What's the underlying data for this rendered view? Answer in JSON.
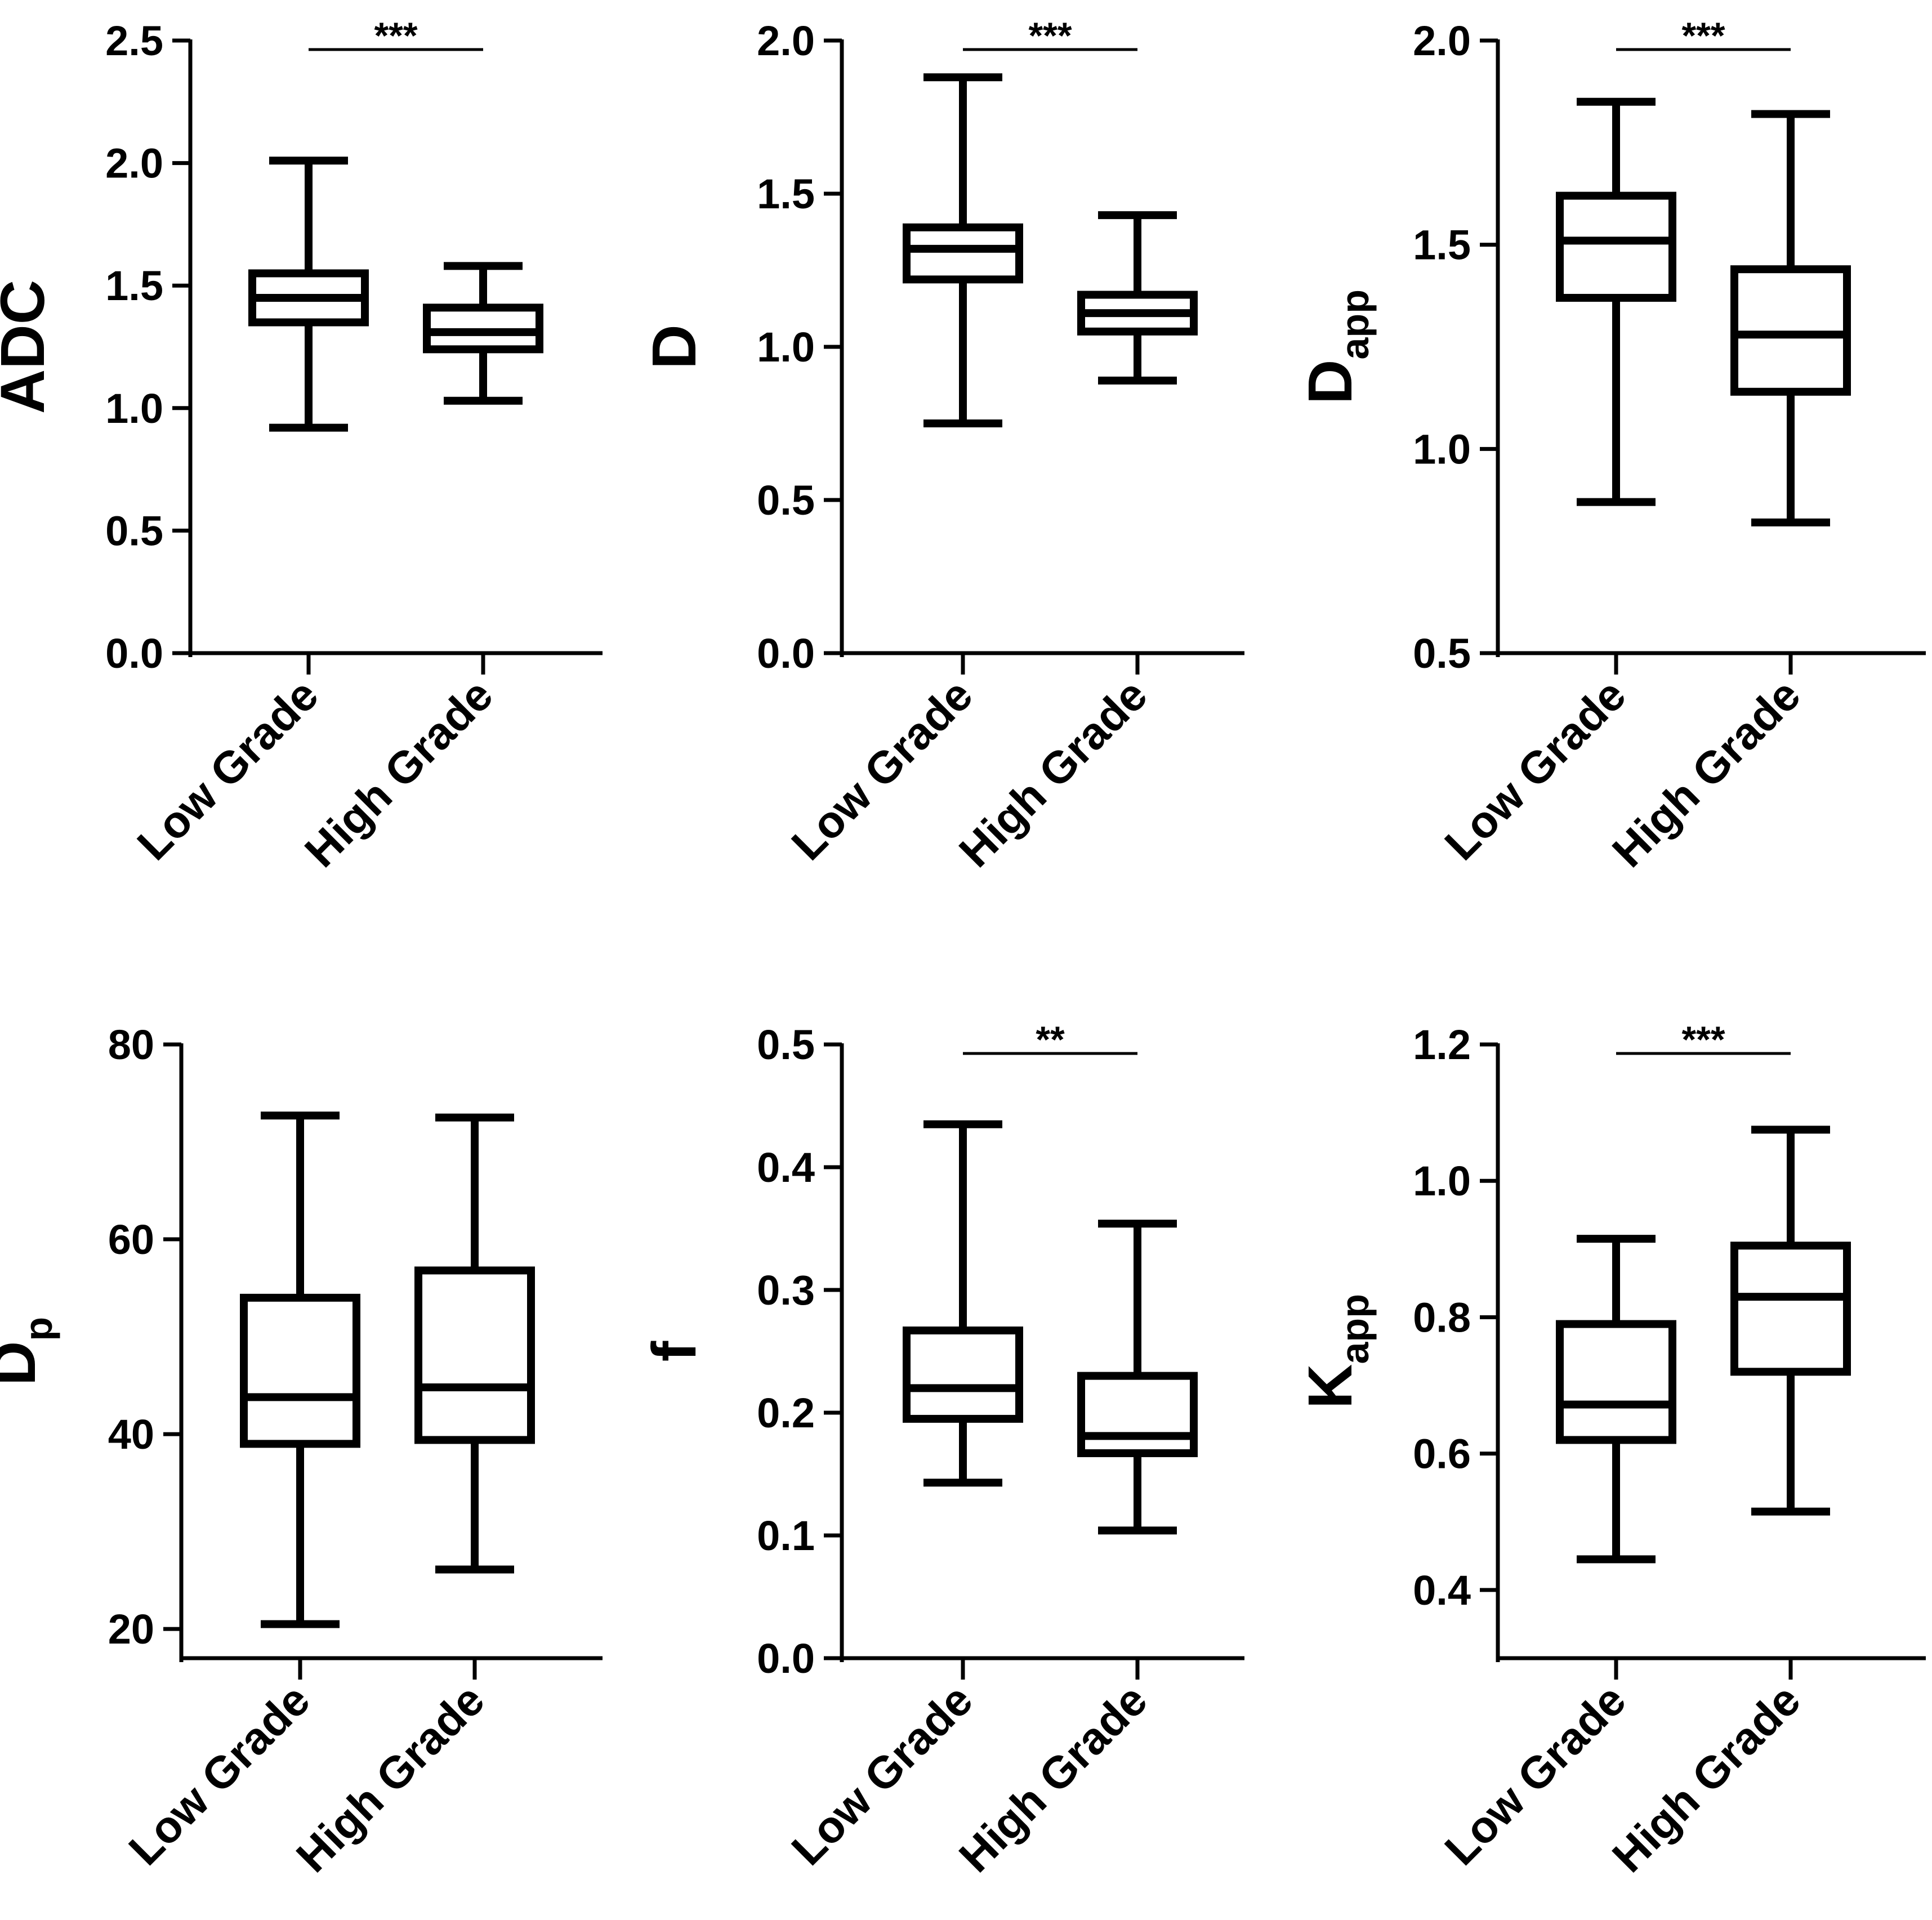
{
  "chart_data": [
    {
      "type": "box",
      "ylabel": "ADC",
      "ylabel_sub": "",
      "ylim": [
        0.0,
        2.5
      ],
      "yticks": [
        "0.0",
        "0.5",
        "1.0",
        "1.5",
        "2.0",
        "2.5"
      ],
      "tick_values": [
        0.0,
        0.5,
        1.0,
        1.5,
        2.0,
        2.5
      ],
      "categories": [
        "Low Grade",
        "High Grade"
      ],
      "boxes": [
        {
          "whisker_low": 0.92,
          "q1": 1.35,
          "median": 1.45,
          "q3": 1.55,
          "whisker_high": 2.01
        },
        {
          "whisker_low": 1.03,
          "q1": 1.24,
          "median": 1.31,
          "q3": 1.41,
          "whisker_high": 1.58
        }
      ],
      "significance": "***"
    },
    {
      "type": "box",
      "ylabel": "D",
      "ylabel_sub": "",
      "ylim": [
        0.0,
        2.0
      ],
      "yticks": [
        "0.0",
        "0.5",
        "1.0",
        "1.5",
        "2.0"
      ],
      "tick_values": [
        0.0,
        0.5,
        1.0,
        1.5,
        2.0
      ],
      "categories": [
        "Low Grade",
        "High Grade"
      ],
      "boxes": [
        {
          "whisker_low": 0.75,
          "q1": 1.22,
          "median": 1.32,
          "q3": 1.39,
          "whisker_high": 1.88
        },
        {
          "whisker_low": 0.89,
          "q1": 1.05,
          "median": 1.11,
          "q3": 1.17,
          "whisker_high": 1.43
        }
      ],
      "significance": "***"
    },
    {
      "type": "box",
      "ylabel": "D",
      "ylabel_sub": "app",
      "ylim": [
        0.5,
        2.0
      ],
      "yticks": [
        "0.5",
        "1.0",
        "1.5",
        "2.0"
      ],
      "tick_values": [
        0.5,
        1.0,
        1.5,
        2.0
      ],
      "categories": [
        "Low Grade",
        "High Grade"
      ],
      "boxes": [
        {
          "whisker_low": 0.87,
          "q1": 1.37,
          "median": 1.51,
          "q3": 1.62,
          "whisker_high": 1.85
        },
        {
          "whisker_low": 0.82,
          "q1": 1.14,
          "median": 1.28,
          "q3": 1.44,
          "whisker_high": 1.82
        }
      ],
      "significance": "***"
    },
    {
      "type": "box",
      "ylabel": "D",
      "ylabel_sub": "p",
      "ylim": [
        17,
        80
      ],
      "yticks": [
        "20",
        "40",
        "60",
        "80"
      ],
      "tick_values": [
        20,
        40,
        60,
        80
      ],
      "categories": [
        "Low Grade",
        "High Grade"
      ],
      "boxes": [
        {
          "whisker_low": 20.5,
          "q1": 39,
          "median": 43.8,
          "q3": 54,
          "whisker_high": 72.7
        },
        {
          "whisker_low": 26.1,
          "q1": 39.4,
          "median": 44.8,
          "q3": 56.8,
          "whisker_high": 72.5
        }
      ],
      "significance": ""
    },
    {
      "type": "box",
      "ylabel": "f",
      "ylabel_sub": "",
      "ylim": [
        0.0,
        0.5
      ],
      "yticks": [
        "0.0",
        "0.1",
        "0.2",
        "0.3",
        "0.4",
        "0.5"
      ],
      "tick_values": [
        0.0,
        0.1,
        0.2,
        0.3,
        0.4,
        0.5
      ],
      "categories": [
        "Low Grade",
        "High Grade"
      ],
      "boxes": [
        {
          "whisker_low": 0.143,
          "q1": 0.195,
          "median": 0.22,
          "q3": 0.267,
          "whisker_high": 0.435
        },
        {
          "whisker_low": 0.104,
          "q1": 0.167,
          "median": 0.181,
          "q3": 0.23,
          "whisker_high": 0.354
        }
      ],
      "significance": "**"
    },
    {
      "type": "box",
      "ylabel": "K",
      "ylabel_sub": "app",
      "ylim": [
        0.3,
        1.2
      ],
      "yticks": [
        "0.4",
        "0.6",
        "0.8",
        "1.0",
        "1.2"
      ],
      "tick_values": [
        0.4,
        0.6,
        0.8,
        1.0,
        1.2
      ],
      "categories": [
        "Low Grade",
        "High Grade"
      ],
      "boxes": [
        {
          "whisker_low": 0.445,
          "q1": 0.62,
          "median": 0.672,
          "q3": 0.79,
          "whisker_high": 0.915
        },
        {
          "whisker_low": 0.515,
          "q1": 0.72,
          "median": 0.83,
          "q3": 0.905,
          "whisker_high": 1.075
        }
      ],
      "significance": "***"
    }
  ]
}
